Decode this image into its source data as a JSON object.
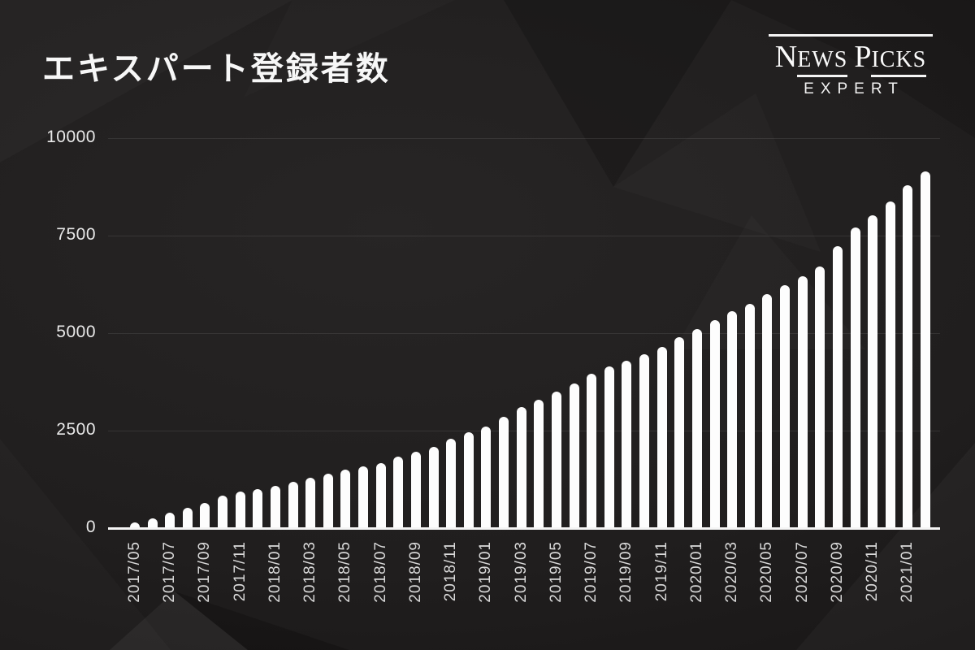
{
  "header": {
    "title": "エキスパート登録者数",
    "logo": {
      "name": "NEWS PICKS",
      "subtext": "EXPERT"
    }
  },
  "chart_data": {
    "type": "bar",
    "title": "エキスパート登録者数",
    "xlabel": "",
    "ylabel": "",
    "ylim": [
      0,
      10000
    ],
    "yticks": [
      0,
      2500,
      5000,
      7500,
      10000
    ],
    "grid": "horizontal-faint",
    "legend": "none",
    "bar_color": "#fdfdfd",
    "background_color": "#201e1e",
    "x_tick_interval": 2,
    "categories": [
      "2017/05",
      "2017/06",
      "2017/07",
      "2017/08",
      "2017/09",
      "2017/10",
      "2017/11",
      "2017/12",
      "2018/01",
      "2018/02",
      "2018/03",
      "2018/04",
      "2018/05",
      "2018/06",
      "2018/07",
      "2018/08",
      "2018/09",
      "2018/10",
      "2018/11",
      "2018/12",
      "2019/01",
      "2019/02",
      "2019/03",
      "2019/04",
      "2019/05",
      "2019/06",
      "2019/07",
      "2019/08",
      "2019/09",
      "2019/10",
      "2019/11",
      "2019/12",
      "2020/01",
      "2020/02",
      "2020/03",
      "2020/04",
      "2020/05",
      "2020/06",
      "2020/07",
      "2020/08",
      "2020/09",
      "2020/10",
      "2020/11",
      "2020/12",
      "2021/01",
      "2021/02"
    ],
    "values": [
      150,
      260,
      400,
      520,
      650,
      830,
      940,
      1010,
      1090,
      1190,
      1290,
      1390,
      1500,
      1590,
      1660,
      1830,
      1960,
      2080,
      2300,
      2450,
      2600,
      2850,
      3100,
      3300,
      3500,
      3700,
      3950,
      4150,
      4300,
      4450,
      4650,
      4900,
      5100,
      5330,
      5560,
      5760,
      5990,
      6230,
      6450,
      6710,
      7230,
      7700,
      8030,
      8380,
      8790,
      9150
    ]
  }
}
